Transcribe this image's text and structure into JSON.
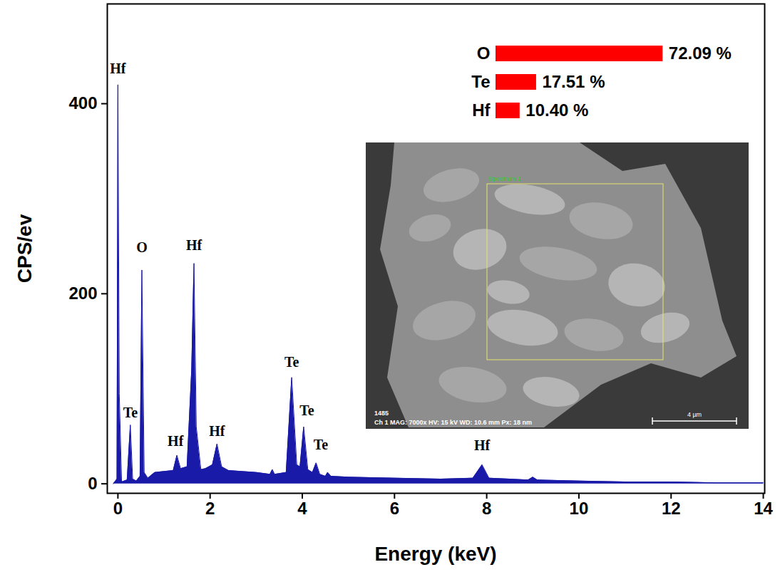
{
  "chart_data": [
    {
      "type": "area",
      "xlabel": "Energy (keV)",
      "ylabel": "CPS/ev",
      "color": "#1a1aa8",
      "x": [
        -0.1,
        -0.02,
        0.0,
        0.03,
        0.08,
        0.2,
        0.27,
        0.32,
        0.4,
        0.48,
        0.52,
        0.57,
        0.65,
        0.8,
        1.0,
        1.2,
        1.28,
        1.36,
        1.5,
        1.6,
        1.65,
        1.7,
        1.8,
        1.9,
        2.05,
        2.15,
        2.25,
        2.4,
        3.0,
        3.3,
        3.35,
        3.4,
        3.65,
        3.77,
        3.88,
        3.95,
        4.03,
        4.12,
        4.22,
        4.3,
        4.38,
        4.5,
        4.55,
        4.62,
        5.0,
        6.0,
        7.0,
        7.7,
        7.9,
        8.05,
        8.5,
        8.9,
        9.0,
        9.1,
        10,
        11,
        12,
        13,
        14
      ],
      "values": [
        0,
        5,
        420,
        95,
        2,
        4,
        62,
        5,
        3,
        8,
        225,
        12,
        6,
        12,
        13,
        14,
        30,
        16,
        18,
        120,
        232,
        60,
        15,
        16,
        20,
        42,
        18,
        14,
        12,
        10,
        15,
        10,
        12,
        112,
        20,
        18,
        60,
        15,
        12,
        22,
        10,
        8,
        12,
        8,
        7,
        6,
        5,
        6,
        20,
        6,
        5,
        4,
        7,
        4,
        3,
        2,
        2,
        1,
        1
      ],
      "xlim": [
        -0.23,
        14.03
      ],
      "xticks": [
        0,
        2,
        4,
        6,
        8,
        10,
        12,
        14
      ],
      "ylim": [
        -10,
        505
      ],
      "yticks": [
        0,
        200,
        400
      ],
      "annotations": [
        {
          "text": "Hf",
          "x": 0.0,
          "y": 432
        },
        {
          "text": "Te",
          "x": 0.27,
          "y": 70
        },
        {
          "text": "O",
          "x": 0.52,
          "y": 244
        },
        {
          "text": "Hf",
          "x": 1.25,
          "y": 40
        },
        {
          "text": "Hf",
          "x": 1.65,
          "y": 246
        },
        {
          "text": "Hf",
          "x": 2.15,
          "y": 50
        },
        {
          "text": "Te",
          "x": 3.77,
          "y": 123
        },
        {
          "text": "Te",
          "x": 4.1,
          "y": 72
        },
        {
          "text": "Te",
          "x": 4.4,
          "y": 36
        },
        {
          "text": "Hf",
          "x": 7.9,
          "y": 35
        }
      ]
    },
    {
      "type": "bar",
      "orientation": "horizontal",
      "categories": [
        "O",
        "Te",
        "Hf"
      ],
      "values": [
        72.09,
        17.51,
        10.4
      ],
      "value_labels": [
        "72.09 %",
        "17.51 %",
        "10.40 %"
      ],
      "color": "#ff0000",
      "xlim": [
        0,
        100
      ],
      "data_labels": true,
      "tick_labels": "y"
    }
  ],
  "inset_image": {
    "region_label": "Spectrum 1",
    "image_id": "1485",
    "info": "Ch 1   MAG: 7000x   HV: 15 kV   WD: 10.6 mm   Px: 18 nm",
    "scale_bar": "4 µm"
  }
}
